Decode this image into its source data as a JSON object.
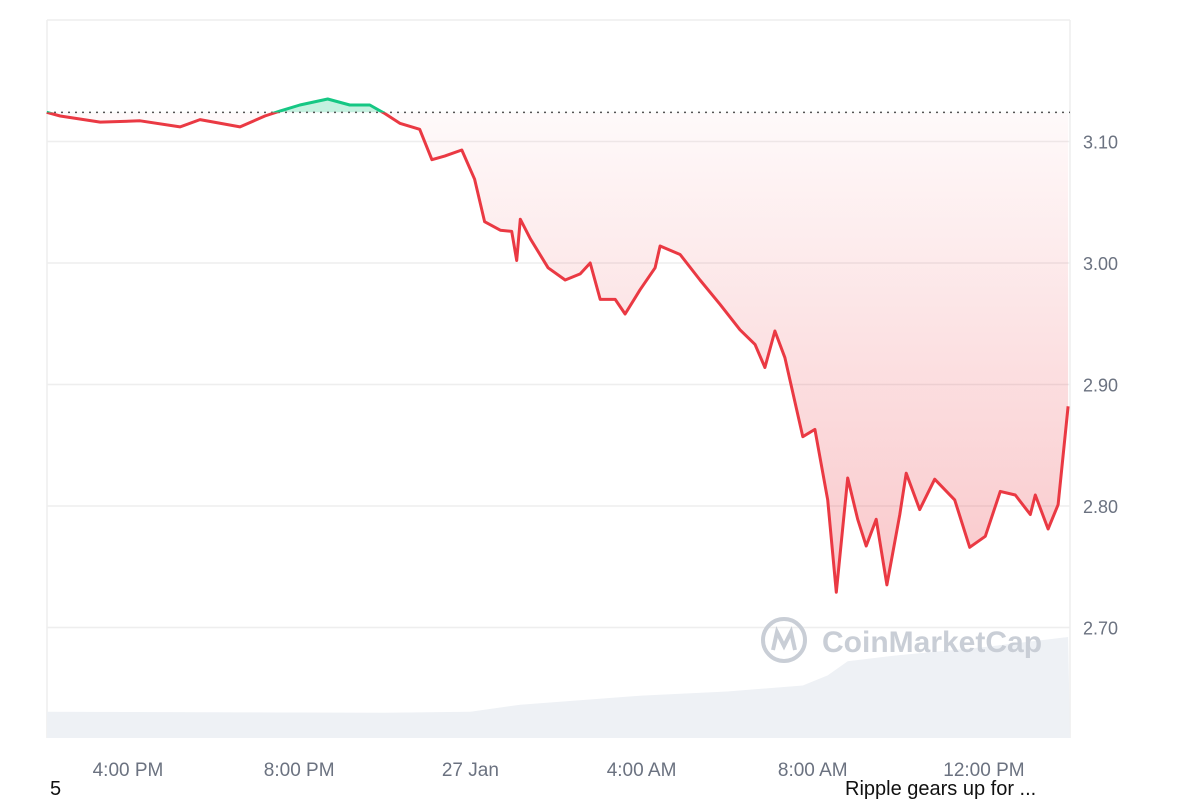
{
  "chart_data": {
    "type": "line",
    "title": "",
    "xlabel": "",
    "ylabel": "",
    "ylim": [
      2.609,
      3.2
    ],
    "xlim": [
      "26 14:06",
      "27 13:58"
    ],
    "y_ticks": [
      "3.10",
      "3.00",
      "2.90",
      "2.80",
      "2.70"
    ],
    "x_ticks": [
      {
        "label": "4:00 PM",
        "at": "26 16:00"
      },
      {
        "label": "8:00 PM",
        "at": "26 20:00"
      },
      {
        "label": "27 Jan",
        "at": "27 00:00"
      },
      {
        "label": "4:00 AM",
        "at": "27 04:00"
      },
      {
        "label": "8:00 AM",
        "at": "27 08:00"
      },
      {
        "label": "12:00 PM",
        "at": "27 12:00"
      }
    ],
    "grid": true,
    "y_axis_side": "right",
    "reference_price": 3.124,
    "colors": {
      "up": "#16c784",
      "down": "#ea3943",
      "grid": "#eeeeee",
      "axis_text": "#6b7280",
      "volume": "#eef1f5"
    },
    "series": [
      {
        "points": [
          [
            "26 14:06",
            3.124
          ],
          [
            "26 14:25",
            3.121
          ],
          [
            "26 15:21",
            3.116
          ],
          [
            "26 16:17",
            3.117
          ],
          [
            "26 17:13",
            3.112
          ],
          [
            "26 17:41",
            3.118
          ],
          [
            "26 18:37",
            3.112
          ],
          [
            "26 19:12",
            3.121
          ],
          [
            "26 19:33",
            3.125
          ],
          [
            "26 20:01",
            3.13
          ],
          [
            "26 20:40",
            3.135
          ],
          [
            "26 21:11",
            3.13
          ],
          [
            "26 21:39",
            3.13
          ],
          [
            "26 22:00",
            3.123
          ],
          [
            "26 22:21",
            3.115
          ],
          [
            "26 22:49",
            3.11
          ],
          [
            "26 23:06",
            3.085
          ],
          [
            "26 23:24",
            3.088
          ],
          [
            "26 23:48",
            3.093
          ],
          [
            "27 00:06",
            3.069
          ],
          [
            "27 00:20",
            3.034
          ],
          [
            "27 00:42",
            3.027
          ],
          [
            "27 00:58",
            3.026
          ],
          [
            "27 01:05",
            3.002
          ],
          [
            "27 01:10",
            3.036
          ],
          [
            "27 01:24",
            3.02
          ],
          [
            "27 01:49",
            2.996
          ],
          [
            "27 02:13",
            2.986
          ],
          [
            "27 02:34",
            2.991
          ],
          [
            "27 02:48",
            3.0
          ],
          [
            "27 03:02",
            2.97
          ],
          [
            "27 03:23",
            2.97
          ],
          [
            "27 03:37",
            2.958
          ],
          [
            "27 03:58",
            2.978
          ],
          [
            "27 04:19",
            2.996
          ],
          [
            "27 04:26",
            3.014
          ],
          [
            "27 04:54",
            3.007
          ],
          [
            "27 05:22",
            2.986
          ],
          [
            "27 05:50",
            2.966
          ],
          [
            "27 06:18",
            2.945
          ],
          [
            "27 06:39",
            2.933
          ],
          [
            "27 06:53",
            2.914
          ],
          [
            "27 07:07",
            2.944
          ],
          [
            "27 07:21",
            2.922
          ],
          [
            "27 07:46",
            2.857
          ],
          [
            "27 08:03",
            2.863
          ],
          [
            "27 08:21",
            2.805
          ],
          [
            "27 08:33",
            2.729
          ],
          [
            "27 08:49",
            2.823
          ],
          [
            "27 09:03",
            2.789
          ],
          [
            "27 09:15",
            2.767
          ],
          [
            "27 09:29",
            2.789
          ],
          [
            "27 09:44",
            2.735
          ],
          [
            "27 10:02",
            2.793
          ],
          [
            "27 10:11",
            2.827
          ],
          [
            "27 10:30",
            2.797
          ],
          [
            "27 10:51",
            2.822
          ],
          [
            "27 11:19",
            2.805
          ],
          [
            "27 11:40",
            2.766
          ],
          [
            "27 12:02",
            2.775
          ],
          [
            "27 12:23",
            2.812
          ],
          [
            "27 12:44",
            2.809
          ],
          [
            "27 13:05",
            2.793
          ],
          [
            "27 13:12",
            2.809
          ],
          [
            "27 13:30",
            2.781
          ],
          [
            "27 13:44",
            2.801
          ],
          [
            "27 13:58",
            2.882
          ]
        ]
      }
    ],
    "volume_relative": [
      [
        "26 14:06",
        0.26
      ],
      [
        "26 22:00",
        0.25
      ],
      [
        "27 00:00",
        0.26
      ],
      [
        "27 01:10",
        0.33
      ],
      [
        "27 04:00",
        0.42
      ],
      [
        "27 06:00",
        0.46
      ],
      [
        "27 07:46",
        0.52
      ],
      [
        "27 08:21",
        0.62
      ],
      [
        "27 08:49",
        0.76
      ],
      [
        "27 10:00",
        0.82
      ],
      [
        "27 12:00",
        0.9
      ],
      [
        "27 13:58",
        1.0
      ]
    ]
  },
  "watermark": "CoinMarketCap",
  "captions": {
    "left": "5",
    "right": "Ripple gears up for ..."
  }
}
